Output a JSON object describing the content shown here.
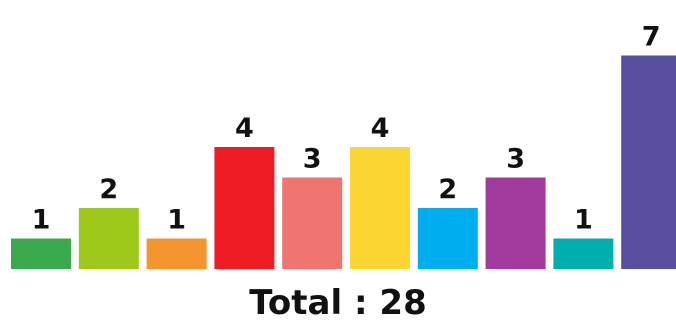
{
  "chart_data": {
    "type": "bar",
    "values": [
      1,
      2,
      1,
      4,
      3,
      4,
      2,
      3,
      1,
      7
    ],
    "colors": [
      "#3aaa4c",
      "#9ec81a",
      "#f4962d",
      "#ee1c25",
      "#f07571",
      "#fbd632",
      "#00aeef",
      "#a23a9d",
      "#00aeae",
      "#574ea0"
    ],
    "ylim": [
      0,
      7
    ],
    "grid": false,
    "legend": "none"
  },
  "total_label": "Total : 28"
}
